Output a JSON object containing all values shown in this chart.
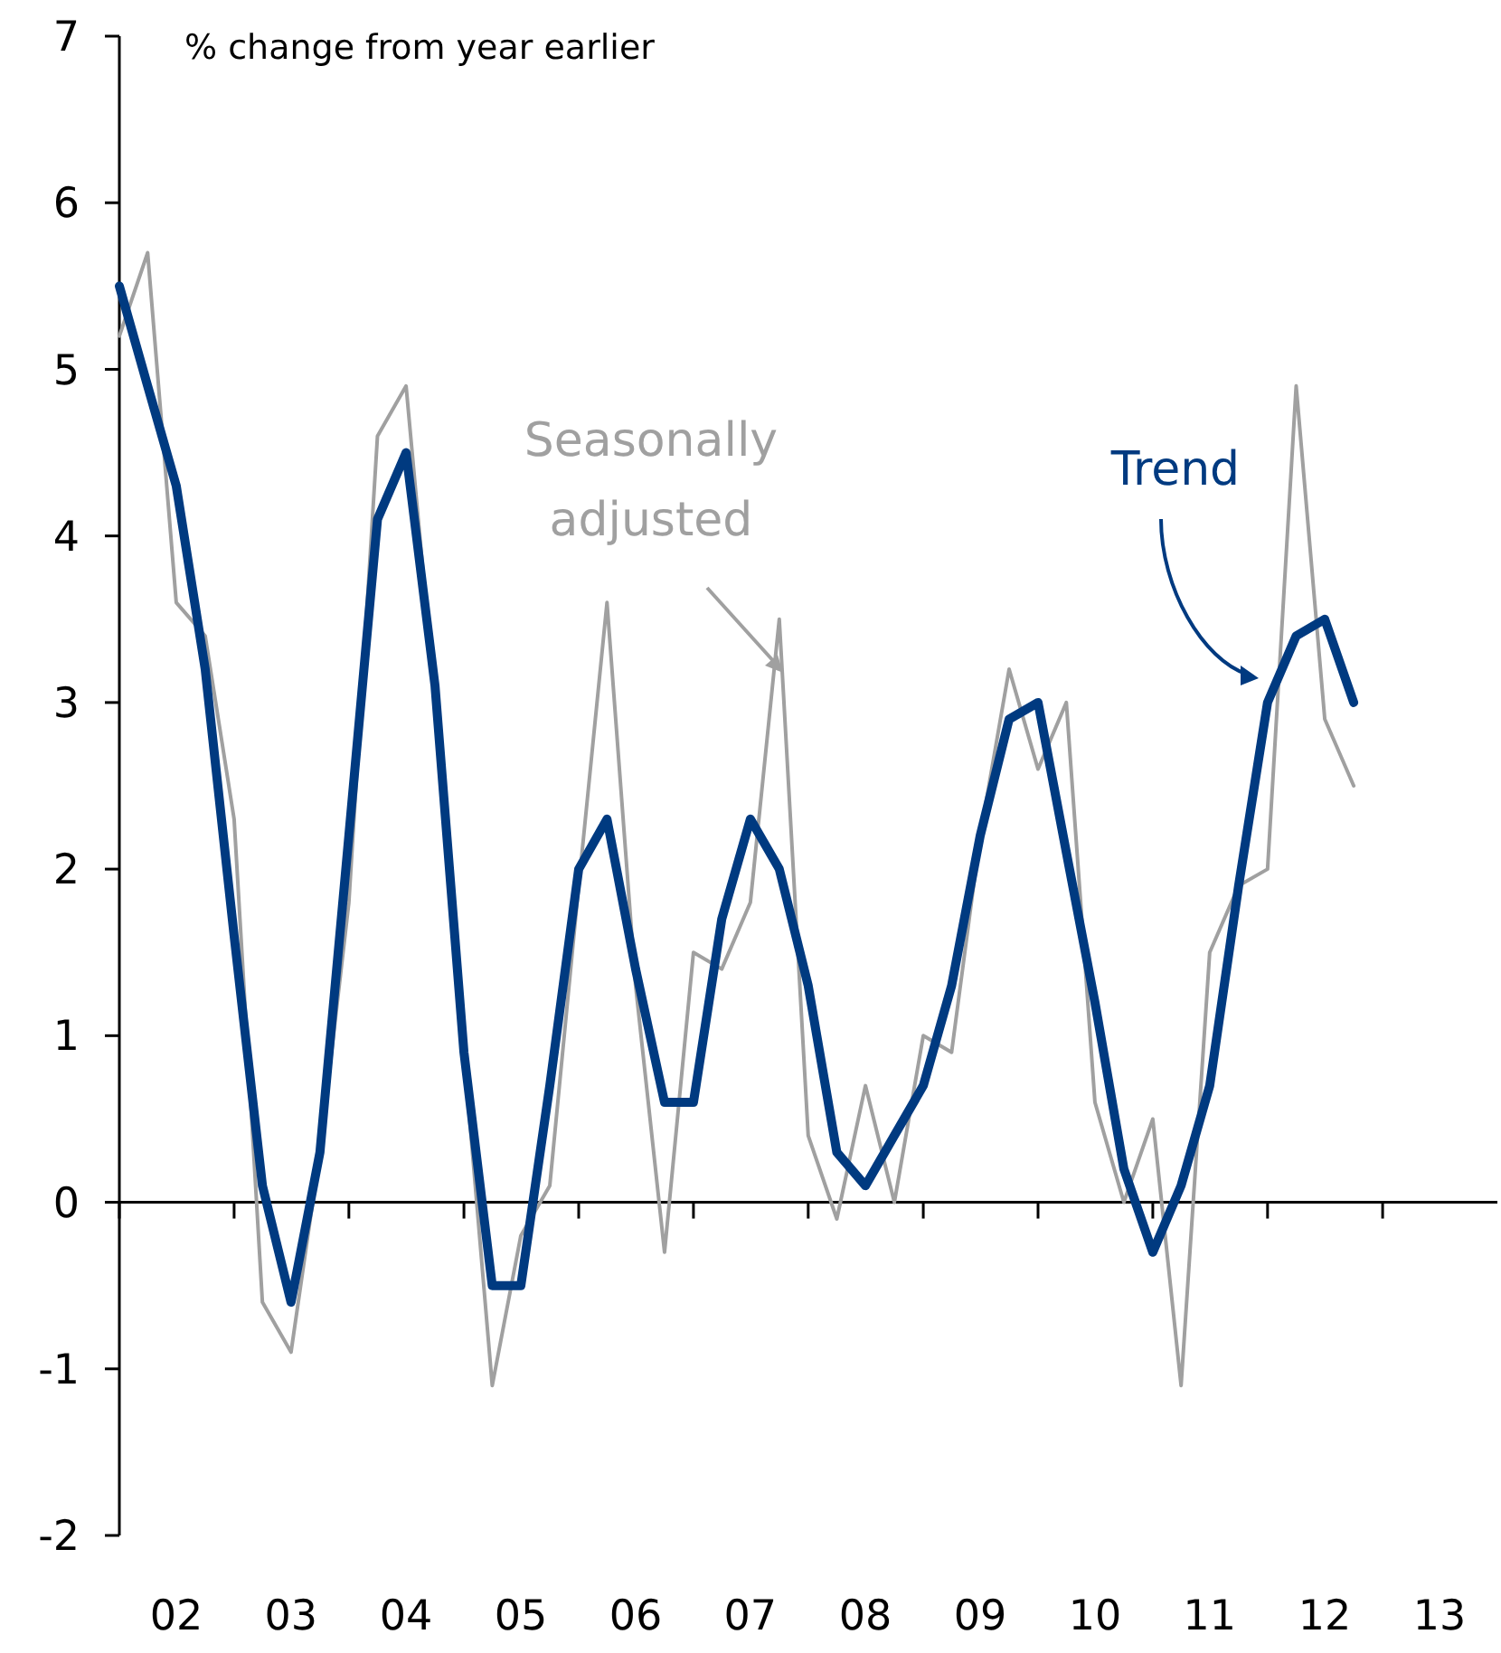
{
  "chart_data": {
    "type": "line",
    "ylabel": "% change from year earlier",
    "x": [
      "2002-01",
      "2002-04",
      "2002-07",
      "2002-10",
      "2003-01",
      "2003-04",
      "2003-07",
      "2003-10",
      "2004-01",
      "2004-04",
      "2004-07",
      "2004-10",
      "2005-01",
      "2005-04",
      "2005-07",
      "2005-10",
      "2006-01",
      "2006-04",
      "2006-07",
      "2006-10",
      "2007-01",
      "2007-04",
      "2007-07",
      "2007-10",
      "2008-01",
      "2008-04",
      "2008-07",
      "2008-10",
      "2009-01",
      "2009-04",
      "2009-07",
      "2009-10",
      "2010-01",
      "2010-04",
      "2010-07",
      "2010-10",
      "2011-01",
      "2011-04",
      "2011-07",
      "2011-10",
      "2012-01",
      "2012-04",
      "2012-07",
      "2012-10"
    ],
    "series": [
      {
        "name": "Seasonally adjusted",
        "color": "#a0a0a0",
        "values": [
          5.2,
          5.7,
          3.6,
          3.4,
          2.3,
          -0.6,
          -0.9,
          0.3,
          1.8,
          4.6,
          4.9,
          3.0,
          0.9,
          -1.1,
          -0.2,
          0.1,
          1.9,
          3.6,
          1.3,
          -0.3,
          1.5,
          1.4,
          1.8,
          3.5,
          0.4,
          -0.1,
          0.7,
          0.0,
          1.0,
          0.9,
          2.2,
          3.2,
          2.6,
          3.0,
          0.6,
          0.0,
          0.5,
          -1.1,
          1.5,
          1.9,
          2.0,
          4.9,
          2.9,
          2.5
        ]
      },
      {
        "name": "Trend",
        "color": "#003a80",
        "values": [
          5.5,
          4.9,
          4.3,
          3.2,
          1.6,
          0.1,
          -0.6,
          0.3,
          2.2,
          4.1,
          4.5,
          3.1,
          0.9,
          -0.5,
          -0.5,
          0.7,
          2.0,
          2.3,
          1.4,
          0.6,
          0.6,
          1.7,
          2.3,
          2.0,
          1.3,
          0.3,
          0.1,
          0.4,
          0.7,
          1.3,
          2.2,
          2.9,
          3.0,
          2.1,
          1.2,
          0.2,
          -0.3,
          0.1,
          0.7,
          1.9,
          3.0,
          3.4,
          3.5,
          3.0
        ]
      }
    ],
    "xlim": [
      "2002-01",
      "2014-01"
    ],
    "xticks": [
      {
        "value": "2002-01",
        "label": null
      },
      {
        "value": "2003-01",
        "label": null
      },
      {
        "value": "2004-01",
        "label": null
      },
      {
        "value": "2005-01",
        "label": null
      },
      {
        "value": "2006-01",
        "label": null
      },
      {
        "value": "2007-01",
        "label": null
      },
      {
        "value": "2008-01",
        "label": null
      },
      {
        "value": "2009-01",
        "label": null
      },
      {
        "value": "2010-01",
        "label": null
      },
      {
        "value": "2011-01",
        "label": null
      },
      {
        "value": "2012-01",
        "label": null
      },
      {
        "value": "2013-01",
        "label": null
      },
      {
        "value": "2002-07",
        "label": "02"
      },
      {
        "value": "2003-07",
        "label": "03"
      },
      {
        "value": "2004-07",
        "label": "04"
      },
      {
        "value": "2005-07",
        "label": "05"
      },
      {
        "value": "2006-07",
        "label": "06"
      },
      {
        "value": "2007-07",
        "label": "07"
      },
      {
        "value": "2008-07",
        "label": "08"
      },
      {
        "value": "2009-07",
        "label": "09"
      },
      {
        "value": "2010-07",
        "label": "10"
      },
      {
        "value": "2011-07",
        "label": "11"
      },
      {
        "value": "2012-07",
        "label": "12"
      },
      {
        "value": "2013-07",
        "label": "13"
      }
    ],
    "ylim": [
      -2,
      7
    ],
    "yticks": [
      -2,
      -1,
      0,
      1,
      2,
      3,
      4,
      5,
      6,
      7
    ],
    "marker": "none",
    "line_style": "solid"
  }
}
